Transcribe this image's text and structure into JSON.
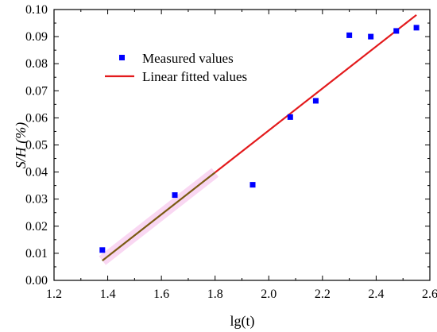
{
  "chart_data": {
    "type": "scatter",
    "xlabel": "lg(t)",
    "ylabel": "S/H (%)",
    "xlim": [
      1.2,
      2.6
    ],
    "ylim": [
      0.0,
      0.1
    ],
    "x_ticks": [
      1.2,
      1.4,
      1.6,
      1.8,
      2.0,
      2.2,
      2.4,
      2.6
    ],
    "x_tick_labels": [
      "1.2",
      "1.4",
      "1.6",
      "1.8",
      "2.0",
      "2.2",
      "2.4",
      "2.6"
    ],
    "y_ticks": [
      0.0,
      0.01,
      0.02,
      0.03,
      0.04,
      0.05,
      0.06,
      0.07,
      0.08,
      0.09,
      0.1
    ],
    "y_tick_labels": [
      "0.00",
      "0.01",
      "0.02",
      "0.03",
      "0.04",
      "0.05",
      "0.06",
      "0.07",
      "0.08",
      "0.09",
      "0.10"
    ],
    "grid": false,
    "legend_position": "top-left",
    "series": [
      {
        "name": "Measured values",
        "kind": "scatter",
        "marker": "square",
        "color": "#0000ff",
        "points": [
          {
            "x": 1.38,
            "y": 0.0112
          },
          {
            "x": 1.65,
            "y": 0.0315
          },
          {
            "x": 1.94,
            "y": 0.0353
          },
          {
            "x": 2.08,
            "y": 0.0603
          },
          {
            "x": 2.175,
            "y": 0.0663
          },
          {
            "x": 2.3,
            "y": 0.0905
          },
          {
            "x": 2.38,
            "y": 0.09
          },
          {
            "x": 2.475,
            "y": 0.0921
          },
          {
            "x": 2.55,
            "y": 0.0933
          }
        ]
      },
      {
        "name": "Linear fitted values",
        "kind": "line",
        "color": "#e31a1c",
        "points": [
          {
            "x": 1.38,
            "y": 0.0073
          },
          {
            "x": 2.55,
            "y": 0.098
          }
        ]
      }
    ]
  },
  "colors": {
    "line_start": "#7a5a12",
    "line_end": "#e31a1c",
    "highlight": "#f7c6ec",
    "axis": "#000000"
  },
  "highlight_range": {
    "x_start": 1.38,
    "x_end": 1.8
  }
}
